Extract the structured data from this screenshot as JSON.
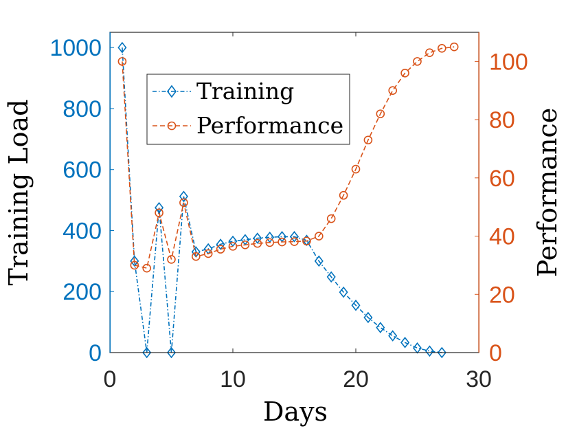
{
  "chart_data": {
    "type": "line",
    "xlabel": "Days",
    "ylabel_left": "Training Load",
    "ylabel_right": "Performance",
    "xlim": [
      0,
      30
    ],
    "ylim_left": [
      0,
      1050
    ],
    "ylim_right": [
      0,
      110
    ],
    "xticks": [
      0,
      10,
      20,
      30
    ],
    "yticks_left": [
      0,
      200,
      400,
      600,
      800,
      1000
    ],
    "yticks_right": [
      0,
      20,
      40,
      60,
      80,
      100
    ],
    "legend_position": "top-left",
    "colors": {
      "left": "#0072BD",
      "right": "#D95319",
      "axis": "#262626"
    },
    "series": [
      {
        "name": "Training",
        "axis": "left",
        "marker": "diamond",
        "line_style": "dash-dot",
        "color": "#0072BD",
        "x": [
          1,
          2,
          3,
          4,
          5,
          6,
          7,
          8,
          9,
          10,
          11,
          12,
          13,
          14,
          15,
          16,
          17,
          18,
          19,
          20,
          21,
          22,
          23,
          24,
          25,
          26,
          27
        ],
        "values": [
          1000,
          300,
          0,
          475,
          0,
          512,
          330,
          340,
          355,
          365,
          370,
          375,
          378,
          380,
          380,
          368,
          300,
          248,
          198,
          155,
          115,
          82,
          55,
          33,
          15,
          5,
          0
        ]
      },
      {
        "name": "Performance",
        "axis": "right",
        "marker": "circle",
        "line_style": "dashed",
        "color": "#D95319",
        "x": [
          1,
          2,
          3,
          4,
          5,
          6,
          7,
          8,
          9,
          10,
          11,
          12,
          13,
          14,
          15,
          16,
          17,
          18,
          19,
          20,
          21,
          22,
          23,
          24,
          25,
          26,
          27,
          28
        ],
        "values": [
          100,
          30,
          29,
          48,
          32,
          51.5,
          33,
          34,
          35.5,
          36.5,
          37,
          37.5,
          37.8,
          38,
          38.1,
          38.3,
          40,
          46,
          54,
          63,
          73,
          82,
          90,
          96,
          100,
          103,
          104.5,
          105
        ]
      }
    ]
  }
}
